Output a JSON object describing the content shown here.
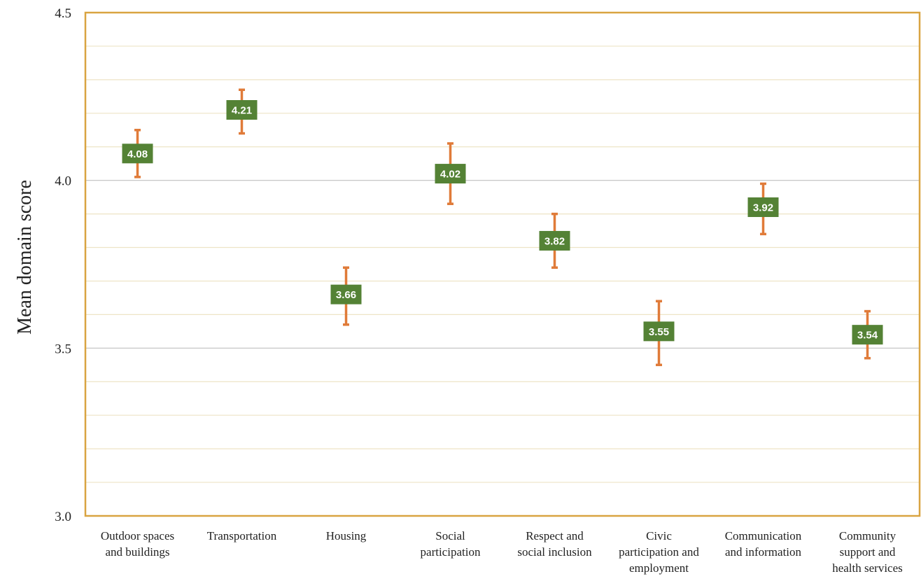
{
  "chart_data": {
    "type": "scatter",
    "ylabel": "Mean domain score",
    "xlabel": "",
    "title": "",
    "ylim": [
      3.0,
      4.5
    ],
    "y_ticks": [
      "3.0",
      "3.5",
      "4.0",
      "4.5"
    ],
    "categories": [
      [
        "Outdoor spaces",
        "and buildings"
      ],
      [
        "Transportation"
      ],
      [
        "Housing"
      ],
      [
        "Social",
        "participation"
      ],
      [
        "Respect and",
        "social inclusion"
      ],
      [
        "Civic",
        "participation and",
        "employment"
      ],
      [
        "Communication",
        "and information"
      ],
      [
        "Community",
        "support and",
        "health services"
      ]
    ],
    "values": [
      4.08,
      4.21,
      3.66,
      4.02,
      3.82,
      3.55,
      3.92,
      3.54
    ],
    "value_labels": [
      "4.08",
      "4.21",
      "3.66",
      "4.02",
      "3.82",
      "3.55",
      "3.92",
      "3.54"
    ],
    "error_low": [
      4.01,
      4.14,
      3.57,
      3.93,
      3.74,
      3.45,
      3.84,
      3.47
    ],
    "error_high": [
      4.15,
      4.27,
      3.74,
      4.11,
      3.9,
      3.64,
      3.99,
      3.61
    ],
    "grid": true,
    "colors": {
      "marker": "#548235",
      "error_bar": "#E07B39",
      "frame": "#D9A441",
      "minor_grid": "#EEE4C6",
      "major_grid": "#C0C0C0"
    }
  }
}
